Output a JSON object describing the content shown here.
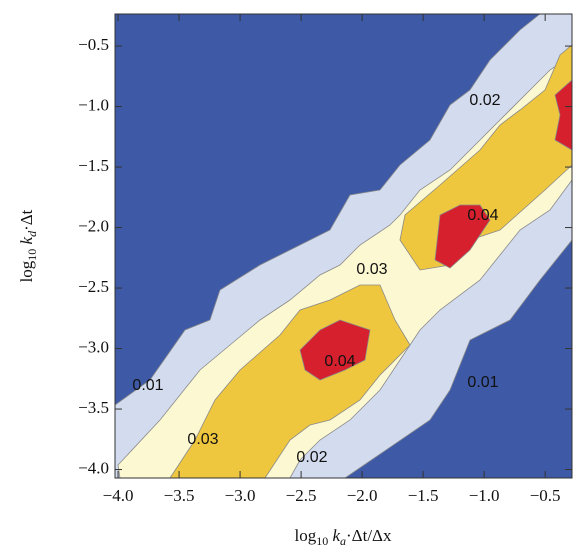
{
  "chart_data": {
    "type": "contour",
    "xlabel": [
      "log",
      "10",
      " k",
      "a",
      "·Δt/Δx"
    ],
    "ylabel": [
      "log",
      "10",
      " k",
      "d",
      "·Δt"
    ],
    "xlim": [
      -4.025,
      -0.28
    ],
    "ylim": [
      -4.07,
      -0.235
    ],
    "xticks": [
      {
        "value": -4,
        "label": "−4.0"
      },
      {
        "value": -3.5,
        "label": "−3.5"
      },
      {
        "value": -3,
        "label": "−3.0"
      },
      {
        "value": -2.5,
        "label": "−2.5"
      },
      {
        "value": -2,
        "label": "−2.0"
      },
      {
        "value": -1.5,
        "label": "−1.5"
      },
      {
        "value": -1,
        "label": "−1.0"
      },
      {
        "value": -0.5,
        "label": "−0.5"
      }
    ],
    "yticks": [
      {
        "value": -0.5,
        "label": "−0.5"
      },
      {
        "value": -1,
        "label": "−1.0"
      },
      {
        "value": -1.5,
        "label": "−1.5"
      },
      {
        "value": -2,
        "label": "−2.0"
      },
      {
        "value": -2.5,
        "label": "−2.5"
      },
      {
        "value": -3,
        "label": "−3.0"
      },
      {
        "value": -3.5,
        "label": "−3.5"
      },
      {
        "value": -4,
        "label": "−4.0"
      }
    ],
    "background_color": "#3e5aa6",
    "levels": [
      0.01,
      0.02,
      0.03,
      0.04
    ],
    "level_colors": [
      "#d3dbef",
      "#fcf8d2",
      "#efc73e",
      "#d6202e"
    ]
  }
}
